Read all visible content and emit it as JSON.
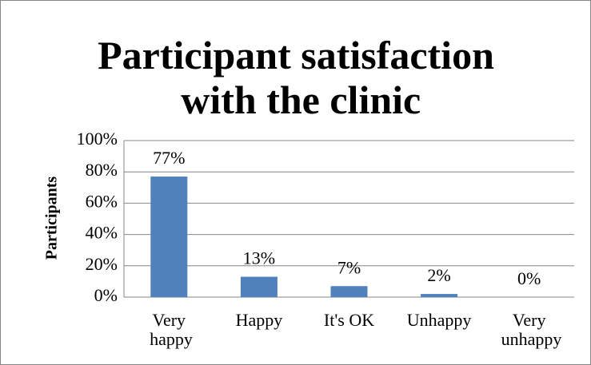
{
  "chart_data": {
    "type": "bar",
    "title": "Participant satisfaction with the clinic",
    "y_label": "Participants",
    "categories": [
      "Very happy",
      "Happy",
      "It's OK",
      "Unhappy",
      "Very unhappy"
    ],
    "values": [
      77,
      13,
      7,
      2,
      0
    ],
    "value_labels": [
      "77%",
      "13%",
      "7%",
      "2%",
      "0%"
    ],
    "color": "#4f81bd",
    "ylim": [
      0,
      100
    ],
    "yticks": [
      {
        "value": 0,
        "label": "0%"
      },
      {
        "value": 20,
        "label": "20%"
      },
      {
        "value": 40,
        "label": "40%"
      },
      {
        "value": 60,
        "label": "60%"
      },
      {
        "value": 80,
        "label": "80%"
      },
      {
        "value": 100,
        "label": "100%"
      }
    ],
    "grid": true
  }
}
